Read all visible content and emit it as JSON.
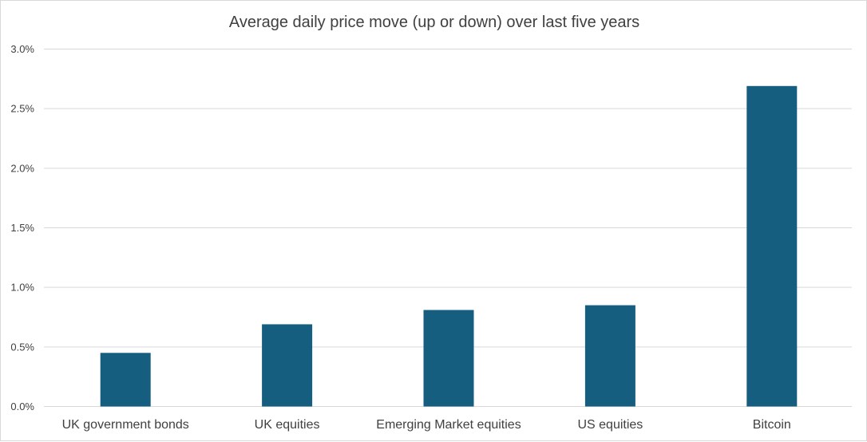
{
  "chart_data": {
    "type": "bar",
    "title": "Average daily price move (up or down) over last five years",
    "xlabel": "",
    "ylabel": "",
    "categories": [
      "UK government bonds",
      "UK equities",
      "Emerging Market equities",
      "US equities",
      "Bitcoin"
    ],
    "series": [
      {
        "values": [
          0.45,
          0.69,
          0.81,
          0.85,
          2.69
        ]
      }
    ],
    "ylim": [
      0,
      3.0
    ],
    "yticks": [
      0,
      0.5,
      1.0,
      1.5,
      2.0,
      2.5,
      3.0
    ],
    "ytick_labels": [
      "0.0%",
      "0.5%",
      "1.0%",
      "1.5%",
      "2.0%",
      "2.5%",
      "3.0%"
    ],
    "grid": true,
    "legend": "none",
    "bar_color": "#165E80"
  }
}
